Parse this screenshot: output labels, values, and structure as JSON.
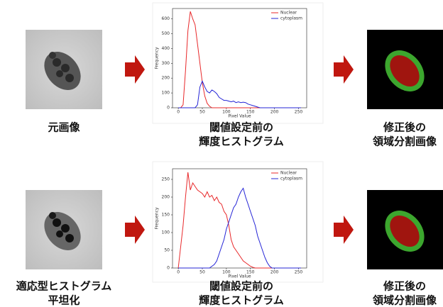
{
  "chart_data": [
    {
      "type": "line",
      "x_label": "Pixel Value",
      "y_label": "Frequency",
      "legend": "upper right",
      "x": [
        0,
        5,
        10,
        15,
        20,
        25,
        30,
        35,
        40,
        45,
        50,
        55,
        60,
        65,
        70,
        75,
        80,
        85,
        90,
        95,
        100,
        105,
        110,
        115,
        120,
        125,
        130,
        135,
        140,
        145,
        150,
        155,
        160,
        165,
        170,
        175,
        180,
        185,
        190,
        195,
        200,
        205,
        210,
        215,
        220,
        225,
        230,
        235,
        240,
        245,
        250,
        255
      ],
      "series": [
        {
          "name": "Nuclear",
          "color": "#e8282a",
          "values": [
            0,
            0,
            20,
            250,
            520,
            650,
            600,
            560,
            430,
            300,
            170,
            80,
            30,
            10,
            0,
            0,
            0,
            0,
            0,
            0,
            0,
            0,
            0,
            0,
            0,
            0,
            0,
            0,
            0,
            0,
            0,
            0,
            0,
            0,
            0,
            0,
            0,
            0,
            0,
            0,
            0,
            0,
            0,
            0,
            0,
            0,
            0,
            0,
            0,
            0,
            0,
            0
          ]
        },
        {
          "name": "cytoplasm",
          "color": "#2424d6",
          "values": [
            0,
            0,
            0,
            0,
            0,
            0,
            0,
            0,
            20,
            140,
            180,
            140,
            110,
            100,
            120,
            110,
            95,
            70,
            60,
            50,
            50,
            45,
            40,
            45,
            35,
            40,
            35,
            38,
            35,
            25,
            20,
            15,
            10,
            5,
            0,
            0,
            0,
            0,
            0,
            0,
            0,
            0,
            0,
            0,
            0,
            0,
            0,
            0,
            0,
            0,
            0,
            0
          ]
        }
      ],
      "xlim": [
        -12,
        267
      ],
      "ylim": [
        0,
        670
      ],
      "xticks": [
        0,
        50,
        100,
        150,
        200,
        250
      ],
      "yticks": [
        0,
        100,
        200,
        300,
        400,
        500,
        600
      ]
    },
    {
      "type": "line",
      "x_label": "Pixel Value",
      "y_label": "Frequency",
      "legend": "upper right",
      "x": [
        0,
        5,
        10,
        15,
        20,
        25,
        30,
        35,
        40,
        45,
        50,
        55,
        60,
        65,
        70,
        75,
        80,
        85,
        90,
        95,
        100,
        105,
        110,
        115,
        120,
        125,
        130,
        135,
        140,
        145,
        150,
        155,
        160,
        165,
        170,
        175,
        180,
        185,
        190,
        195,
        200,
        205,
        210,
        215,
        220,
        225,
        230,
        235,
        240,
        245,
        250,
        255
      ],
      "series": [
        {
          "name": "Nuclear",
          "color": "#e8282a",
          "values": [
            0,
            60,
            120,
            200,
            270,
            220,
            240,
            230,
            220,
            215,
            210,
            200,
            215,
            200,
            205,
            190,
            200,
            185,
            180,
            160,
            150,
            120,
            80,
            60,
            50,
            40,
            30,
            20,
            15,
            10,
            5,
            2,
            0,
            0,
            0,
            0,
            0,
            0,
            0,
            0,
            0,
            0,
            0,
            0,
            0,
            0,
            0,
            0,
            0,
            0,
            0,
            0
          ]
        },
        {
          "name": "cytoplasm",
          "color": "#2424d6",
          "values": [
            0,
            0,
            0,
            0,
            0,
            0,
            0,
            0,
            0,
            0,
            0,
            0,
            0,
            0,
            5,
            10,
            20,
            40,
            60,
            80,
            110,
            130,
            150,
            170,
            180,
            200,
            215,
            225,
            200,
            180,
            160,
            140,
            120,
            90,
            70,
            50,
            30,
            15,
            5,
            0,
            0,
            0,
            0,
            0,
            0,
            0,
            0,
            0,
            0,
            0,
            0,
            0
          ]
        }
      ],
      "xlim": [
        -12,
        267
      ],
      "ylim": [
        0,
        280
      ],
      "xticks": [
        0,
        50,
        100,
        150,
        200,
        250
      ],
      "yticks": [
        0,
        50,
        100,
        150,
        200,
        250
      ]
    }
  ],
  "rows": [
    {
      "input_caption": [
        "元画像"
      ],
      "histogram_caption": [
        "閾値設定前の",
        "輝度ヒストグラム"
      ],
      "output_caption": [
        "修正後の",
        "領域分割画像"
      ]
    },
    {
      "input_caption": [
        "適応型ヒストグラム",
        "平坦化"
      ],
      "histogram_caption": [
        "閾値設定前の",
        "輝度ヒストグラム"
      ],
      "output_caption": [
        "修正後の",
        "領域分割画像"
      ]
    }
  ]
}
